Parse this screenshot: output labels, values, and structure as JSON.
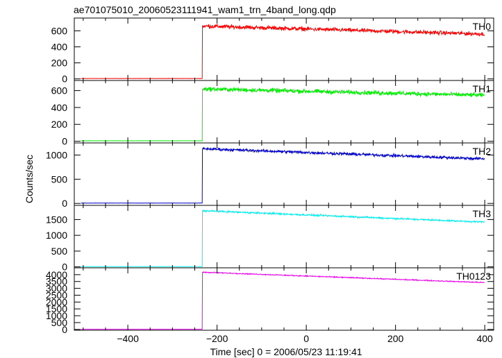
{
  "title": "ae701075010_20060523111941_wam1_trn_4band_long.qdp",
  "xlabel": "Time [sec] 0 = 2006/05/23 11:19:41",
  "ylabel": "Counts/sec",
  "chart_data": {
    "type": "line",
    "title": "ae701075010_20060523111941_wam1_trn_4band_long.qdp",
    "xlabel": "Time [sec] 0 = 2006/05/23 11:19:41",
    "ylabel": "Counts/sec",
    "xlim": [
      -520,
      420
    ],
    "xticks": [
      -400,
      -200,
      0,
      200,
      400
    ],
    "step_time": -233,
    "x_range_data": [
      -505,
      400
    ],
    "panels": [
      {
        "name": "TH0",
        "color": "#ff0000",
        "ylim": [
          -20,
          760
        ],
        "yticks": [
          0,
          200,
          400,
          600
        ],
        "baseline": 5,
        "start": 660,
        "end": 560,
        "noise": 38
      },
      {
        "name": "TH1",
        "color": "#00ee00",
        "ylim": [
          -20,
          720
        ],
        "yticks": [
          0,
          200,
          400,
          600
        ],
        "baseline": 5,
        "start": 620,
        "end": 545,
        "noise": 38
      },
      {
        "name": "TH2",
        "color": "#0000cc",
        "ylim": [
          -40,
          1250
        ],
        "yticks": [
          0,
          500,
          1000
        ],
        "baseline": 8,
        "start": 1130,
        "end": 920,
        "noise": 45
      },
      {
        "name": "TH3",
        "color": "#00eeee",
        "ylim": [
          -30,
          1950
        ],
        "yticks": [
          0,
          500,
          1000,
          1500
        ],
        "baseline": 8,
        "start": 1780,
        "end": 1420,
        "noise": 40
      },
      {
        "name": "TH0123",
        "color": "#ee00ee",
        "ylim": [
          -60,
          4500
        ],
        "yticks": [
          0,
          500,
          1000,
          1500,
          2000,
          2500,
          3000,
          3500,
          4000
        ],
        "baseline": 15,
        "start": 4180,
        "end": 3420,
        "noise": 55
      }
    ]
  }
}
